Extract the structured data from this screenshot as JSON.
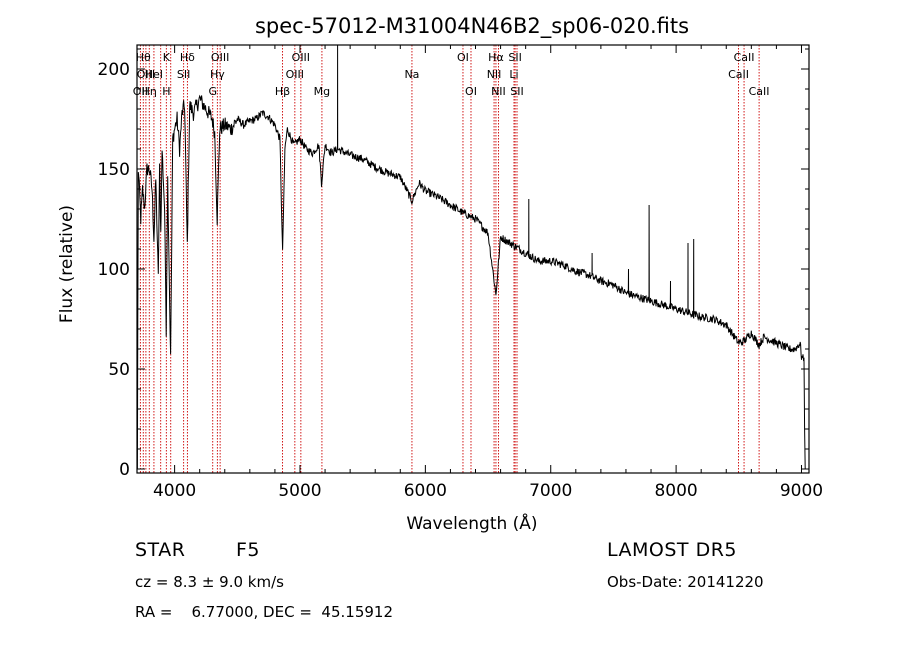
{
  "chart_data": {
    "type": "line",
    "title": "spec-57012-M31004N46B2_sp06-020.fits",
    "xlabel": "Wavelength (Å)",
    "ylabel": "Flux (relative)",
    "xlim": [
      3700,
      9060
    ],
    "ylim": [
      -2,
      212
    ],
    "x_ticks": [
      4000,
      5000,
      6000,
      7000,
      8000,
      9000
    ],
    "y_ticks": [
      0,
      50,
      100,
      150,
      200
    ],
    "grid": false,
    "line_color": "#000000",
    "line_marker_color": "#cc0000",
    "spectrum_anchor_points": [
      [
        3700,
        55
      ],
      [
        3703,
        0
      ],
      [
        3710,
        150
      ],
      [
        3730,
        125
      ],
      [
        3745,
        140
      ],
      [
        3760,
        130
      ],
      [
        3780,
        150
      ],
      [
        3800,
        150
      ],
      [
        3820,
        140
      ],
      [
        3835,
        115
      ],
      [
        3850,
        145
      ],
      [
        3870,
        95
      ],
      [
        3880,
        150
      ],
      [
        3890,
        118
      ],
      [
        3900,
        160
      ],
      [
        3920,
        130
      ],
      [
        3933,
        70
      ],
      [
        3945,
        145
      ],
      [
        3968,
        55
      ],
      [
        3985,
        165
      ],
      [
        4000,
        170
      ],
      [
        4020,
        175
      ],
      [
        4040,
        160
      ],
      [
        4060,
        178
      ],
      [
        4080,
        182
      ],
      [
        4101,
        112
      ],
      [
        4120,
        182
      ],
      [
        4150,
        178
      ],
      [
        4200,
        185
      ],
      [
        4250,
        180
      ],
      [
        4300,
        175
      ],
      [
        4320,
        168
      ],
      [
        4340,
        125
      ],
      [
        4360,
        170
      ],
      [
        4400,
        172
      ],
      [
        4450,
        170
      ],
      [
        4500,
        175
      ],
      [
        4550,
        172
      ],
      [
        4600,
        174
      ],
      [
        4650,
        175
      ],
      [
        4700,
        178
      ],
      [
        4750,
        176
      ],
      [
        4800,
        172
      ],
      [
        4840,
        165
      ],
      [
        4861,
        108
      ],
      [
        4880,
        160
      ],
      [
        4900,
        170
      ],
      [
        4950,
        162
      ],
      [
        5000,
        165
      ],
      [
        5050,
        160
      ],
      [
        5100,
        158
      ],
      [
        5150,
        162
      ],
      [
        5172,
        143
      ],
      [
        5200,
        162
      ],
      [
        5250,
        158
      ],
      [
        5300,
        160
      ],
      [
        5400,
        157
      ],
      [
        5500,
        155
      ],
      [
        5600,
        151
      ],
      [
        5700,
        148
      ],
      [
        5800,
        146
      ],
      [
        5893,
        134
      ],
      [
        5950,
        143
      ],
      [
        6000,
        139
      ],
      [
        6100,
        136
      ],
      [
        6200,
        132
      ],
      [
        6300,
        128
      ],
      [
        6400,
        125
      ],
      [
        6500,
        118
      ],
      [
        6563,
        87
      ],
      [
        6600,
        116
      ],
      [
        6700,
        112
      ],
      [
        6800,
        108
      ],
      [
        6900,
        104
      ],
      [
        7000,
        104
      ],
      [
        7100,
        102
      ],
      [
        7200,
        99
      ],
      [
        7300,
        97
      ],
      [
        7400,
        94
      ],
      [
        7500,
        92
      ],
      [
        7600,
        88
      ],
      [
        7700,
        86
      ],
      [
        7800,
        84
      ],
      [
        7900,
        82
      ],
      [
        8000,
        80
      ],
      [
        8100,
        78
      ],
      [
        8200,
        76
      ],
      [
        8300,
        75
      ],
      [
        8400,
        72
      ],
      [
        8498,
        63
      ],
      [
        8542,
        64
      ],
      [
        8600,
        68
      ],
      [
        8662,
        62
      ],
      [
        8700,
        66
      ],
      [
        8800,
        63
      ],
      [
        8900,
        60
      ],
      [
        8950,
        60
      ],
      [
        8990,
        63
      ],
      [
        9000,
        56
      ],
      [
        9020,
        55
      ],
      [
        9025,
        20
      ],
      [
        9030,
        0
      ],
      [
        9050,
        0
      ]
    ],
    "spikes": [
      [
        5300,
        212
      ],
      [
        6825,
        135
      ],
      [
        7330,
        108
      ],
      [
        7620,
        100
      ],
      [
        7785,
        132
      ],
      [
        7955,
        94
      ],
      [
        8095,
        113
      ],
      [
        8140,
        115
      ]
    ],
    "lines": [
      {
        "wl": 3727,
        "labels": [
          {
            "t": "OII",
            "row": 3
          }
        ]
      },
      {
        "wl": 3750,
        "labels": [
          {
            "t": "Hθ",
            "row": 1
          }
        ]
      },
      {
        "wl": 3771,
        "labels": [
          {
            "t": "OIII",
            "row": 2
          }
        ]
      },
      {
        "wl": 3798,
        "labels": [
          {
            "t": "Hη",
            "row": 3
          }
        ]
      },
      {
        "wl": 3835,
        "labels": [
          {
            "t": "HeI",
            "row": 2
          }
        ]
      },
      {
        "wl": 3889,
        "labels": []
      },
      {
        "wl": 3934,
        "labels": [
          {
            "t": "K",
            "row": 1
          },
          {
            "t": "H",
            "row": 3
          }
        ]
      },
      {
        "wl": 3969,
        "labels": []
      },
      {
        "wl": 4072,
        "labels": [
          {
            "t": "SII",
            "row": 2
          }
        ]
      },
      {
        "wl": 4102,
        "labels": [
          {
            "t": "Hδ",
            "row": 1
          }
        ]
      },
      {
        "wl": 4304,
        "labels": [
          {
            "t": "G",
            "row": 3
          }
        ]
      },
      {
        "wl": 4341,
        "labels": [
          {
            "t": "Hγ",
            "row": 2
          }
        ]
      },
      {
        "wl": 4363,
        "labels": [
          {
            "t": "OIII",
            "row": 1
          }
        ]
      },
      {
        "wl": 4861,
        "labels": [
          {
            "t": "Hβ",
            "row": 3
          }
        ]
      },
      {
        "wl": 4959,
        "labels": [
          {
            "t": "OIII",
            "row": 2
          }
        ]
      },
      {
        "wl": 5007,
        "labels": [
          {
            "t": "OIII",
            "row": 1
          }
        ]
      },
      {
        "wl": 5175,
        "labels": [
          {
            "t": "Mg",
            "row": 3
          }
        ]
      },
      {
        "wl": 5893,
        "labels": [
          {
            "t": "Na",
            "row": 2
          }
        ]
      },
      {
        "wl": 6300,
        "labels": [
          {
            "t": "OI",
            "row": 1
          }
        ]
      },
      {
        "wl": 6364,
        "labels": [
          {
            "t": "OI",
            "row": 3
          }
        ]
      },
      {
        "wl": 6548,
        "labels": [
          {
            "t": "NII",
            "row": 2
          }
        ]
      },
      {
        "wl": 6563,
        "labels": [
          {
            "t": "Hα",
            "row": 1
          }
        ]
      },
      {
        "wl": 6583,
        "labels": [
          {
            "t": "NII",
            "row": 3
          }
        ]
      },
      {
        "wl": 6707,
        "labels": [
          {
            "t": "Li",
            "row": 2
          }
        ]
      },
      {
        "wl": 6716,
        "labels": [
          {
            "t": "SII",
            "row": 1
          }
        ]
      },
      {
        "wl": 6731,
        "labels": [
          {
            "t": "SII",
            "row": 3
          }
        ]
      },
      {
        "wl": 8498,
        "labels": [
          {
            "t": "CaII",
            "row": 2
          }
        ]
      },
      {
        "wl": 8542,
        "labels": [
          {
            "t": "CaII",
            "row": 1
          }
        ]
      },
      {
        "wl": 8662,
        "labels": [
          {
            "t": "CaII",
            "row": 3
          }
        ]
      }
    ]
  },
  "info": {
    "object_class": "STAR",
    "subclass": "F5",
    "survey": "LAMOST DR5",
    "redshift": "cz = 8.3 ± 9.0 km/s",
    "obs_date": "Obs-Date: 20141220",
    "coords": "RA =    6.77000, DEC =  45.15912"
  }
}
